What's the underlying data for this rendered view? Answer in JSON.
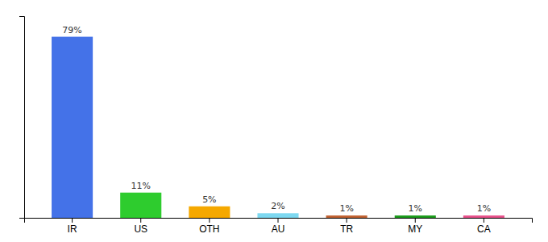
{
  "chart_data": {
    "type": "bar",
    "categories": [
      "IR",
      "US",
      "OTH",
      "AU",
      "TR",
      "MY",
      "CA"
    ],
    "values": [
      79,
      11,
      5,
      2,
      1,
      1,
      1
    ],
    "value_labels": [
      "79%",
      "11%",
      "5%",
      "2%",
      "1%",
      "1%",
      "1%"
    ],
    "colors": [
      "#4472e8",
      "#2ecc2e",
      "#f5a800",
      "#7dd8f0",
      "#c06030",
      "#1a9a1a",
      "#e8508a"
    ],
    "ylim": [
      0,
      88
    ],
    "data_labels": true,
    "tick_labels": "x"
  }
}
